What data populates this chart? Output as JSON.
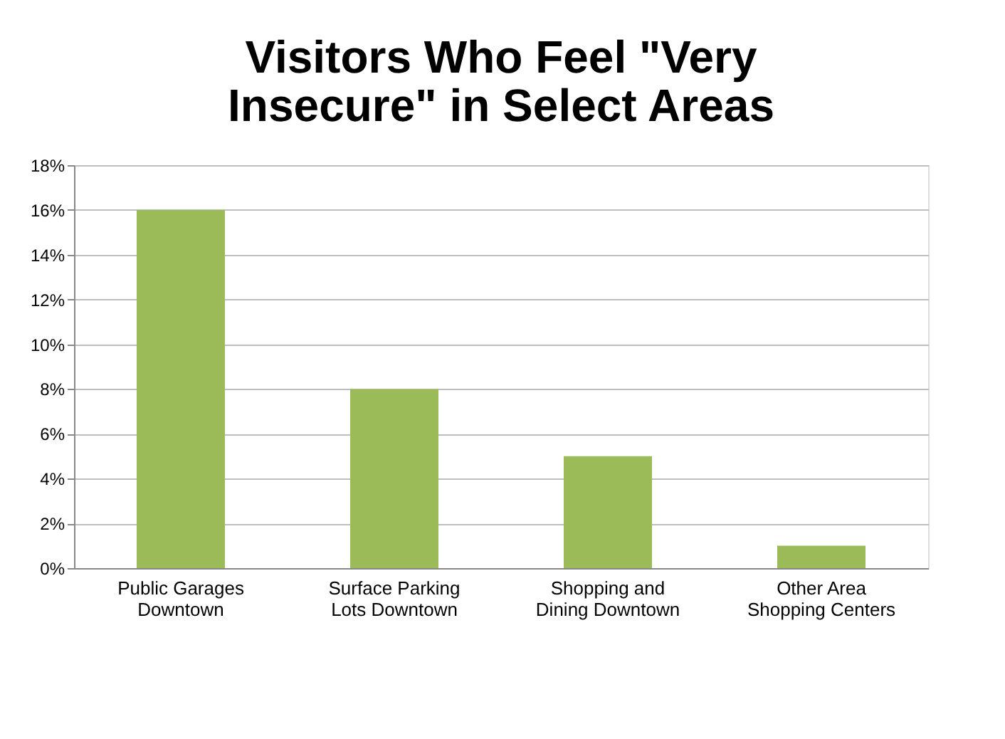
{
  "chart_data": {
    "type": "bar",
    "title": "Visitors Who Feel \"Very Insecure\" in Select Areas",
    "categories": [
      "Public Garages Downtown",
      "Surface Parking Lots Downtown",
      "Shopping and Dining Downtown",
      "Other Area Shopping Centers"
    ],
    "values": [
      16,
      8,
      5,
      1
    ],
    "color": "#9bbb59",
    "ylim": [
      0,
      18
    ],
    "yticks": [
      {
        "value": 0,
        "label": "0%"
      },
      {
        "value": 2,
        "label": "2%"
      },
      {
        "value": 4,
        "label": "4%"
      },
      {
        "value": 6,
        "label": "6%"
      },
      {
        "value": 8,
        "label": "8%"
      },
      {
        "value": 10,
        "label": "10%"
      },
      {
        "value": 12,
        "label": "12%"
      },
      {
        "value": 14,
        "label": "14%"
      },
      {
        "value": 16,
        "label": "16%"
      },
      {
        "value": 18,
        "label": "18%"
      }
    ],
    "grid": "y"
  }
}
